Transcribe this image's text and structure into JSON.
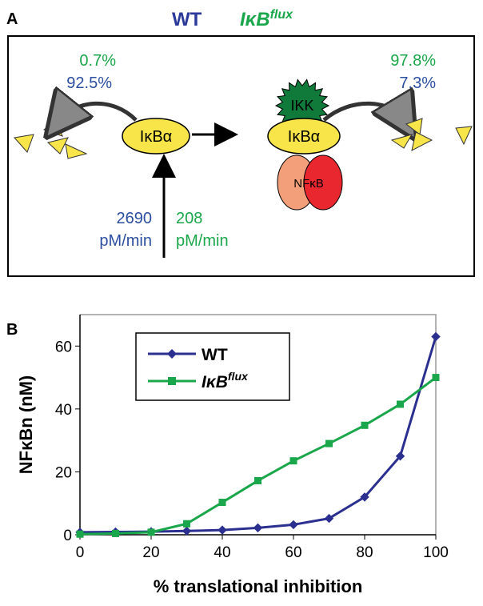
{
  "panel_a": {
    "label": "A",
    "header_wt": "WT",
    "header_flux": "IκB",
    "header_flux_sup": "flux",
    "left_flux_pct": "0.7%",
    "left_wt_pct": "92.5%",
    "right_flux_pct": "97.8%",
    "right_wt_pct": "7.3%",
    "node_ikba_left": "IκBα",
    "node_ikk": "IKK",
    "node_ikba_right": "IκBα",
    "node_nfkb": "NFκB",
    "synthesis_wt_rate": "2690",
    "synthesis_wt_unit": "pM/min",
    "synthesis_flux_rate": "208",
    "synthesis_flux_unit": "pM/min"
  },
  "chart_data": {
    "panel_label": "B",
    "type": "line",
    "x_label": "% translational inhibition",
    "y_label": "NFκBn (nM)",
    "x": [
      0,
      10,
      20,
      30,
      40,
      50,
      60,
      70,
      80,
      90,
      100
    ],
    "series": [
      {
        "name": "WT",
        "color": "#2b2f8f",
        "marker": "diamond",
        "values": [
          0.8,
          0.9,
          1,
          1.2,
          1.5,
          2.2,
          3.2,
          5.2,
          12,
          25,
          63
        ]
      },
      {
        "name": "IκB",
        "name_sup": "flux",
        "color": "#1aa64a",
        "marker": "square",
        "values": [
          0.2,
          0.4,
          0.8,
          3.5,
          10.3,
          17.2,
          23.5,
          29,
          34.8,
          41.5,
          50
        ]
      }
    ],
    "xlim": [
      0,
      100
    ],
    "xticks": [
      0,
      20,
      40,
      60,
      80,
      100
    ],
    "ylim": [
      0,
      70
    ],
    "yticks": [
      0,
      20,
      40,
      60
    ]
  }
}
